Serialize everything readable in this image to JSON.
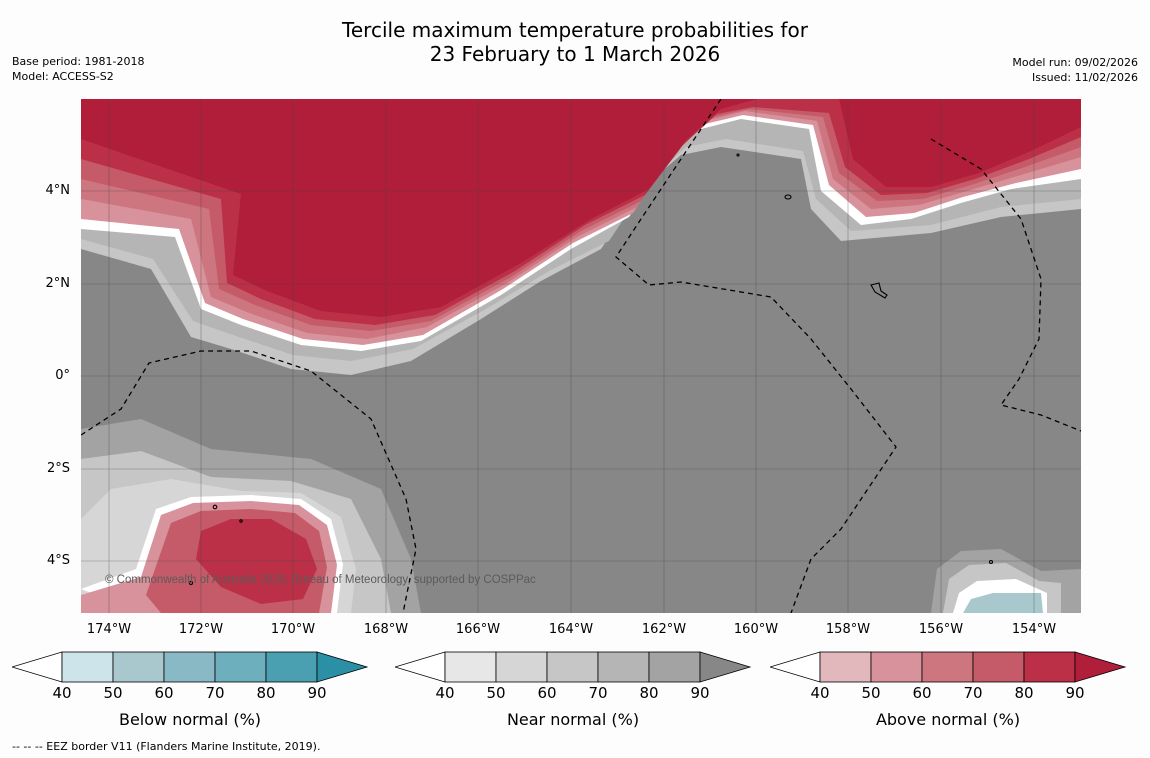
{
  "title": {
    "line1": "Tercile maximum temperature probabilities for",
    "line2": "23 February to 1 March 2026"
  },
  "meta": {
    "base_period": "Base period: 1981-2018",
    "model": "Model: ACCESS-S2",
    "model_run": "Model run: 09/02/2026",
    "issued": "Issued: 11/02/2026"
  },
  "map": {
    "copyright": "© Commonwealth of Australia 2026, Bureau of Meteorology, supported by COSPPac",
    "lat_labels": [
      "4°N",
      "2°N",
      "0°",
      "2°S",
      "4°S"
    ],
    "lon_labels": [
      "174°W",
      "172°W",
      "170°W",
      "168°W",
      "166°W",
      "164°W",
      "162°W",
      "160°W",
      "158°W",
      "156°W",
      "154°W"
    ]
  },
  "colorbars": [
    {
      "label": "Below normal (%)",
      "ticks": [
        "40",
        "50",
        "60",
        "70",
        "80",
        "90"
      ],
      "colors": [
        "#ffffff",
        "#cde4ea",
        "#a8c8ce",
        "#8ab9c6",
        "#6dafbd",
        "#4a9fb1",
        "#2b8fa6"
      ]
    },
    {
      "label": "Near normal (%)",
      "ticks": [
        "40",
        "50",
        "60",
        "70",
        "80",
        "90"
      ],
      "colors": [
        "#ffffff",
        "#e7e7e7",
        "#d6d6d6",
        "#c6c6c6",
        "#b5b5b5",
        "#a3a3a3",
        "#878787"
      ]
    },
    {
      "label": "Above normal (%)",
      "ticks": [
        "40",
        "50",
        "60",
        "70",
        "80",
        "90"
      ],
      "colors": [
        "#ffffff",
        "#e3b8bd",
        "#d8929b",
        "#cd7680",
        "#c55a68",
        "#bb3046",
        "#b01e3a"
      ]
    }
  ],
  "footnote": "--  --  -- EEZ border V11 (Flanders Marine Institute, 2019).",
  "palette": {
    "above90": "#b01e3a",
    "above80": "#bb3046",
    "above70": "#c55a68",
    "above60": "#cd7680",
    "above50": "#d8929b",
    "near90": "#878787",
    "near80": "#a3a3a3",
    "near70": "#b5b5b5",
    "near60": "#c6c6c6",
    "below50": "#a8c8ce"
  }
}
